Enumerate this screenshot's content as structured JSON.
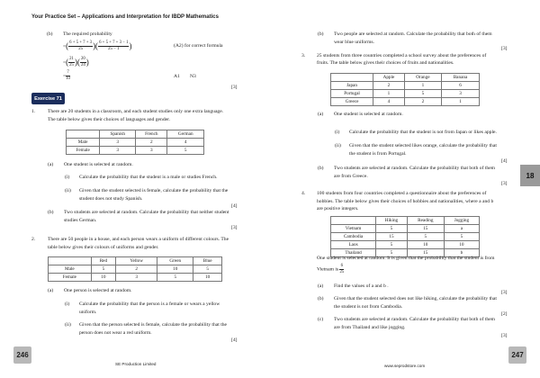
{
  "header": {
    "title": "Your Practice Set – Applications and Interpretation for IBDP Mathematics"
  },
  "left": {
    "prev_b": {
      "label": "(b)",
      "intro": "The required probability",
      "eq": "=",
      "f1n": "6 + 5 + 7 + 3",
      "f1d": "25",
      "f2n": "6 + 5 + 7 + 3 − 1",
      "f2d": "25 − 1",
      "f3n": "21",
      "f3d": "25",
      "f4n": "20",
      "f4d": "24",
      "f5n": "7",
      "f5d": "10",
      "mark1": "(A2) for correct formula",
      "mark2": "A1",
      "mark3": "N3",
      "total": "[3]"
    },
    "exercise": "Exercise 71",
    "q1": {
      "num": "1.",
      "lines": [
        "There are 20 students in a classroom, and each student studies only one extra language.",
        "The table below gives their choices of languages and gender."
      ],
      "table": {
        "headers": [
          "",
          "Spanish",
          "French",
          "German"
        ],
        "rows": [
          [
            "Male",
            "3",
            "2",
            "4"
          ],
          [
            "Female",
            "3",
            "3",
            "5"
          ]
        ]
      },
      "a": {
        "label": "(a)",
        "text": "One student is selected at random.",
        "i_label": "(i)",
        "i_text": "Calculate the probability that the student is a male or studies French.",
        "ii_label": "(ii)",
        "ii_lines": [
          "Given that the student selected is female, calculate the probability that the",
          "student does not study Spanish."
        ],
        "marks": "[4]"
      },
      "b": {
        "label": "(b)",
        "lines": [
          "Two students are selected at random. Calculate the probability that neither student",
          "studies German."
        ],
        "marks": "[3]"
      }
    },
    "q2": {
      "num": "2.",
      "lines": [
        "There are 50 people in a house, and each person wears a uniform of different colours. The",
        "table below gives their colours of uniforms and gender."
      ],
      "table": {
        "headers": [
          "",
          "Red",
          "Yellow",
          "Green",
          "Blue"
        ],
        "rows": [
          [
            "Male",
            "5",
            "2",
            "10",
            "5"
          ],
          [
            "Female",
            "10",
            "3",
            "5",
            "10"
          ]
        ]
      },
      "a": {
        "label": "(a)",
        "text": "One person is selected at random.",
        "i_label": "(i)",
        "i_lines": [
          "Calculate the probability that the person is a female or wears a yellow",
          "uniform."
        ],
        "ii_label": "(ii)",
        "ii_lines": [
          "Given that the person selected is female, calculate the probability that the",
          "person does not wear a red uniform."
        ],
        "marks": "[4]"
      }
    },
    "page_number": "246",
    "footer": "SE Production Limited"
  },
  "right": {
    "q2b": {
      "label": "(b)",
      "lines": [
        "Two people are selected at random. Calculate the probability that both of them",
        "wear blue uniforms."
      ],
      "marks": "[3]"
    },
    "q3": {
      "num": "3.",
      "lines": [
        "25 students from three countries completed a school survey about the preferences of",
        "fruits. The table below gives their choices of fruits and nationalities."
      ],
      "table": {
        "headers": [
          "",
          "Apple",
          "Orange",
          "Banana"
        ],
        "rows": [
          [
            "Japan",
            "2",
            "1",
            "6"
          ],
          [
            "Portugal",
            "1",
            "5",
            "3"
          ],
          [
            "Greece",
            "4",
            "2",
            "1"
          ]
        ]
      },
      "a": {
        "label": "(a)",
        "text": "One student is selected at random.",
        "i_label": "(i)",
        "i_text": "Calculate the probability that the student is not from Japan or likes apple.",
        "ii_label": "(ii)",
        "ii_lines": [
          "Given that the student selected likes orange, calculate the probability that",
          "the student is from Portugal."
        ],
        "marks": "[4]"
      },
      "b": {
        "label": "(b)",
        "lines": [
          "Two students are selected at random. Calculate the probability that both of them",
          "are from Greece."
        ],
        "marks": "[3]"
      }
    },
    "q4": {
      "num": "4.",
      "lines": [
        "100 students from four countries completed a questionnaire about the preferences of",
        "hobbies. The table below gives their choices of hobbies and nationalities, where a and b",
        "are positive integers."
      ],
      "table": {
        "headers": [
          "",
          "Hiking",
          "Reading",
          "Jogging"
        ],
        "rows": [
          [
            "Vietnam",
            "5",
            "15",
            "a"
          ],
          [
            "Cambodia",
            "15",
            "5",
            "5"
          ],
          [
            "Laos",
            "5",
            "10",
            "10"
          ],
          [
            "Thailand",
            "5",
            "15",
            "b"
          ]
        ]
      },
      "given": "One student is selected at random. It is given that the probability that the student is from",
      "vietnam_text": "Vietnam is",
      "fn": "6",
      "fd": "25",
      "a": {
        "label": "(a)",
        "text": "Find the values of a and b .",
        "marks": "[3]"
      },
      "b": {
        "label": "(b)",
        "lines": [
          "Given that the student selected does not like hiking, calculate the probability that",
          "the student is not from Cambodia."
        ],
        "marks": "[2]"
      },
      "c": {
        "label": "(c)",
        "lines": [
          "Two students are selected at random. Calculate the probability that both of them",
          "are from Thailand and like jogging."
        ],
        "marks": "[3]"
      }
    },
    "chapter_tab": "18",
    "page_number": "247",
    "footer": "www.seprodstore.com"
  }
}
